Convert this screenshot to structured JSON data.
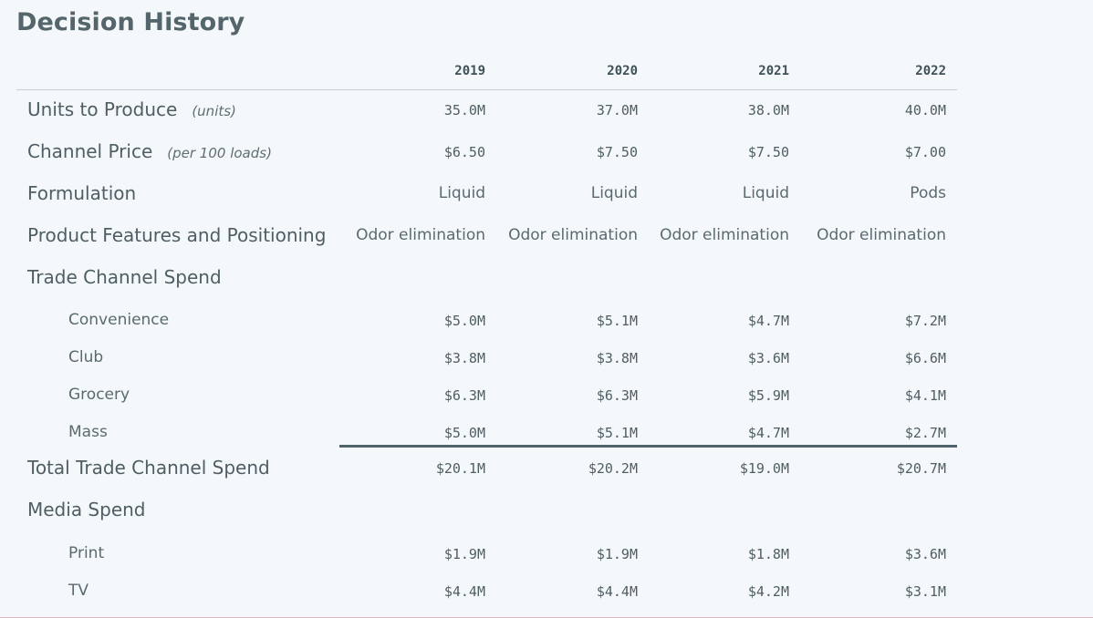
{
  "title": "Decision History",
  "years": [
    "2019",
    "2020",
    "2021",
    "2022"
  ],
  "rows": {
    "units": {
      "label": "Units to Produce",
      "unit": "(units)",
      "values": [
        "35.0M",
        "37.0M",
        "38.0M",
        "40.0M"
      ]
    },
    "price": {
      "label": "Channel Price",
      "unit": "(per 100 loads)",
      "values": [
        "$6.50",
        "$7.50",
        "$7.50",
        "$7.00"
      ]
    },
    "formulation": {
      "label": "Formulation",
      "values": [
        "Liquid",
        "Liquid",
        "Liquid",
        "Pods"
      ]
    },
    "features": {
      "label": "Product Features and Positioning",
      "values": [
        "Odor elimination",
        "Odor elimination",
        "Odor elimination",
        "Odor elimination"
      ]
    },
    "trade": {
      "label": "Trade Channel Spend",
      "items": [
        {
          "label": "Convenience",
          "values": [
            "$5.0M",
            "$5.1M",
            "$4.7M",
            "$7.2M"
          ]
        },
        {
          "label": "Club",
          "values": [
            "$3.8M",
            "$3.8M",
            "$3.6M",
            "$6.6M"
          ]
        },
        {
          "label": "Grocery",
          "values": [
            "$6.3M",
            "$6.3M",
            "$5.9M",
            "$4.1M"
          ]
        },
        {
          "label": "Mass",
          "values": [
            "$5.0M",
            "$5.1M",
            "$4.7M",
            "$2.7M"
          ]
        }
      ]
    },
    "total_trade": {
      "label": "Total Trade Channel Spend",
      "values": [
        "$20.1M",
        "$20.2M",
        "$19.0M",
        "$20.7M"
      ]
    },
    "media": {
      "label": "Media Spend",
      "items": [
        {
          "label": "Print",
          "values": [
            "$1.9M",
            "$1.9M",
            "$1.8M",
            "$3.6M"
          ]
        },
        {
          "label": "TV",
          "values": [
            "$4.4M",
            "$4.4M",
            "$4.2M",
            "$3.1M"
          ]
        }
      ]
    }
  }
}
